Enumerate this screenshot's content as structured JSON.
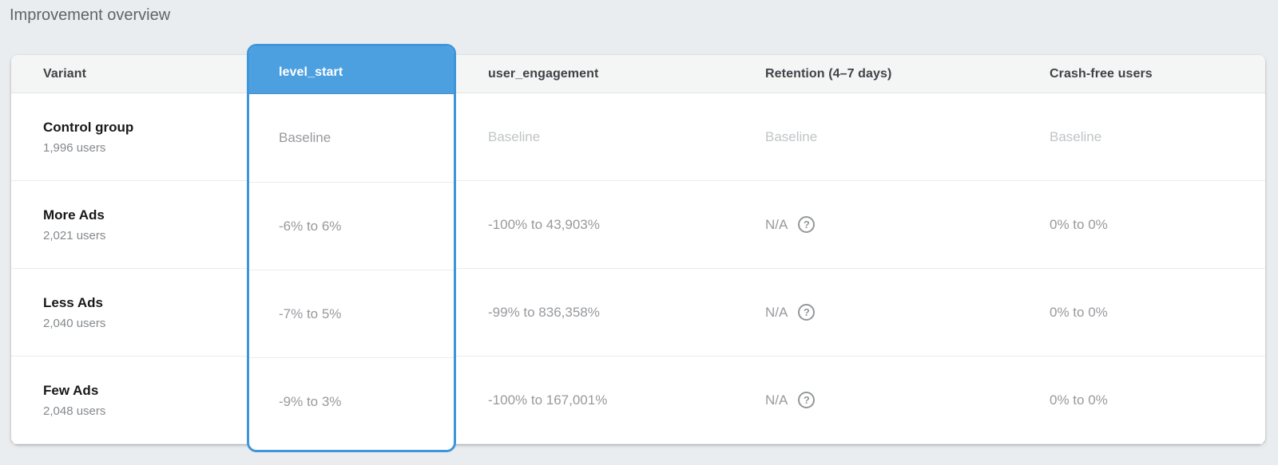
{
  "page": {
    "title": "Improvement overview"
  },
  "table": {
    "columns": [
      "Variant",
      "level_start",
      "user_engagement",
      "Retention (4–7 days)",
      "Crash-free users"
    ],
    "highlighted_column": "level_start",
    "help_icon_glyph": "?",
    "rows": [
      {
        "name": "Control group",
        "users": "1,996 users",
        "level_start": "Baseline",
        "user_engagement": "Baseline",
        "retention": "Baseline",
        "crash_free": "Baseline"
      },
      {
        "name": "More Ads",
        "users": "2,021 users",
        "level_start": "-6% to 6%",
        "user_engagement": "-100% to 43,903%",
        "retention": "N/A",
        "crash_free": "0% to 0%"
      },
      {
        "name": "Less Ads",
        "users": "2,040 users",
        "level_start": "-7% to 5%",
        "user_engagement": "-99% to 836,358%",
        "retention": "N/A",
        "crash_free": "0% to 0%"
      },
      {
        "name": "Few Ads",
        "users": "2,048 users",
        "level_start": "-9% to 3%",
        "user_engagement": "-100% to 167,001%",
        "retention": "N/A",
        "crash_free": "0% to 0%"
      }
    ],
    "colors": {
      "highlight_fill": "#4da0e0",
      "highlight_border": "#3f95da",
      "page_background": "#eaedef"
    }
  }
}
